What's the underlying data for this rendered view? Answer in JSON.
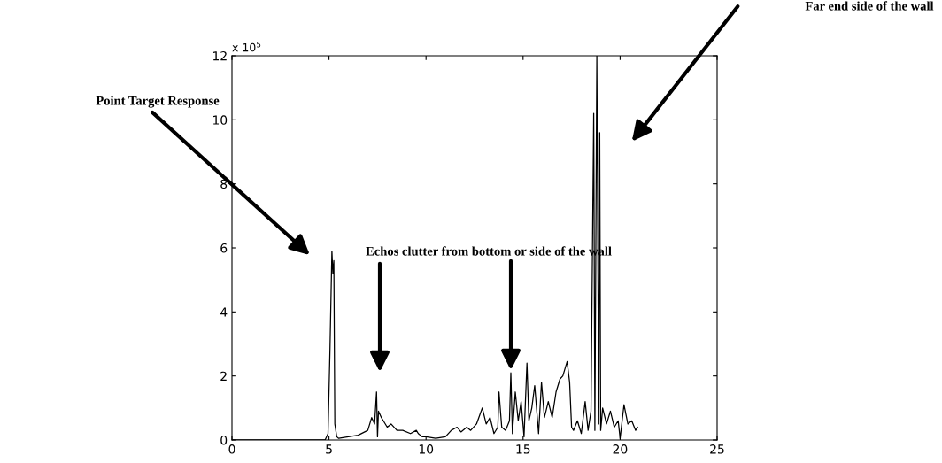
{
  "chart_data": {
    "type": "line",
    "xlim": [
      0,
      25
    ],
    "ylim": [
      0,
      12
    ],
    "xticks": [
      0,
      5,
      10,
      15,
      20,
      25
    ],
    "yticks": [
      0,
      2,
      4,
      6,
      8,
      10,
      12
    ],
    "grid": false,
    "marker": "none",
    "line_style": "solid",
    "series": [
      {
        "color": "#000000",
        "x": [
          0,
          4.8,
          4.95,
          5.05,
          5.15,
          5.2,
          5.25,
          5.3,
          5.4,
          5.5,
          6,
          6.5,
          7,
          7.2,
          7.35,
          7.45,
          7.5,
          7.55,
          7.7,
          7.8,
          8,
          8.2,
          8.5,
          8.8,
          9.2,
          9.5,
          9.6,
          9.8,
          10,
          10.5,
          11,
          11.3,
          11.6,
          11.8,
          12.1,
          12.3,
          12.6,
          12.9,
          13.1,
          13.3,
          13.5,
          13.7,
          13.76,
          13.9,
          14.1,
          14.3,
          14.37,
          14.45,
          14.6,
          14.75,
          14.9,
          15.05,
          15.2,
          15.3,
          15.45,
          15.6,
          15.8,
          15.95,
          16.1,
          16.3,
          16.5,
          16.7,
          16.9,
          17.05,
          17.27,
          17.4,
          17.5,
          17.6,
          17.8,
          18.0,
          18.2,
          18.35,
          18.5,
          18.64,
          18.7,
          18.8,
          18.9,
          18.95,
          19.0,
          19.1,
          19.3,
          19.5,
          19.7,
          19.9,
          20.0,
          20.2,
          20.4,
          20.6,
          20.8,
          20.9
        ],
        "values": [
          0,
          0,
          0.2,
          2.8,
          5.9,
          5.2,
          5.6,
          0.5,
          0.1,
          0.05,
          0.1,
          0.15,
          0.3,
          0.7,
          0.5,
          1.5,
          0.1,
          0.9,
          0.7,
          0.6,
          0.4,
          0.5,
          0.3,
          0.3,
          0.2,
          0.3,
          0.2,
          0.1,
          0.1,
          0.05,
          0.1,
          0.3,
          0.4,
          0.25,
          0.4,
          0.3,
          0.5,
          1.0,
          0.5,
          0.7,
          0.2,
          0.4,
          1.5,
          0.4,
          0.3,
          0.6,
          2.1,
          0.2,
          1.5,
          0.6,
          1.2,
          0.1,
          2.4,
          0.6,
          1.0,
          1.7,
          0.2,
          1.8,
          0.7,
          1.2,
          0.7,
          1.5,
          1.9,
          2.0,
          2.45,
          1.8,
          0.4,
          0.3,
          0.6,
          0.2,
          1.2,
          0.3,
          0.9,
          10.2,
          0.3,
          12.0,
          0.5,
          9.6,
          0.3,
          1.0,
          0.5,
          0.9,
          0.4,
          0.6,
          0.05,
          1.1,
          0.5,
          0.6,
          0.3,
          0.4
        ]
      }
    ],
    "annotations": [
      "x 10$^{5}$",
      "Point Target Response",
      "Far end side of the wall",
      "Echos clutter from bottom or side of the wall"
    ]
  }
}
